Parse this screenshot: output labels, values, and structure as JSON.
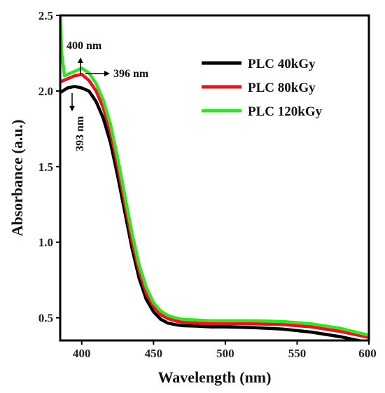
{
  "chart_data": {
    "type": "line",
    "xlabel": "Wavelength (nm)",
    "ylabel": "Absorbance (a.u.)",
    "xlim": [
      385,
      600
    ],
    "ylim": [
      0.35,
      2.5
    ],
    "xticks": [
      400,
      450,
      500,
      550,
      600
    ],
    "yticks": [
      0.5,
      1.0,
      1.5,
      2.0,
      2.5
    ],
    "ytick_labels": [
      "0.5",
      "1.0",
      "1.5",
      "2.0",
      "2.5"
    ],
    "legend_position": "top-right",
    "grid": false,
    "series": [
      {
        "name": "PLC 40kGy",
        "color": "#000000",
        "x": [
          385,
          390,
          395,
          400,
          405,
          410,
          415,
          420,
          425,
          430,
          435,
          440,
          445,
          450,
          455,
          460,
          465,
          470,
          480,
          490,
          500,
          520,
          540,
          560,
          580,
          600
        ],
        "y": [
          1.99,
          2.02,
          2.03,
          2.02,
          2.0,
          1.93,
          1.82,
          1.66,
          1.44,
          1.2,
          0.96,
          0.76,
          0.62,
          0.54,
          0.49,
          0.465,
          0.455,
          0.448,
          0.445,
          0.44,
          0.44,
          0.435,
          0.425,
          0.405,
          0.375,
          0.335
        ]
      },
      {
        "name": "PLC 80kGy",
        "color": "#e8141c",
        "x": [
          385,
          390,
          395,
          400,
          405,
          410,
          415,
          420,
          425,
          430,
          435,
          440,
          445,
          450,
          455,
          460,
          465,
          470,
          480,
          490,
          500,
          520,
          540,
          560,
          580,
          600
        ],
        "y": [
          2.06,
          2.08,
          2.1,
          2.11,
          2.07,
          2.0,
          1.89,
          1.73,
          1.51,
          1.26,
          1.01,
          0.81,
          0.66,
          0.575,
          0.52,
          0.495,
          0.48,
          0.47,
          0.465,
          0.46,
          0.46,
          0.46,
          0.455,
          0.44,
          0.41,
          0.37
        ]
      },
      {
        "name": "PLC 120kGy",
        "color": "#39e028",
        "x": [
          385,
          386,
          388,
          390,
          395,
          400,
          405,
          410,
          415,
          420,
          425,
          430,
          435,
          440,
          445,
          450,
          455,
          460,
          465,
          470,
          480,
          490,
          500,
          520,
          540,
          560,
          580,
          600
        ],
        "y": [
          2.5,
          2.25,
          2.1,
          2.11,
          2.13,
          2.15,
          2.12,
          2.05,
          1.94,
          1.78,
          1.56,
          1.31,
          1.06,
          0.85,
          0.7,
          0.6,
          0.545,
          0.515,
          0.5,
          0.49,
          0.485,
          0.48,
          0.48,
          0.48,
          0.475,
          0.46,
          0.43,
          0.385
        ]
      }
    ],
    "annotations": [
      {
        "text": "400 nm",
        "arrow": "up"
      },
      {
        "text": "396 nm",
        "arrow": "right"
      },
      {
        "text": "393 nm",
        "arrow": "down"
      }
    ]
  }
}
